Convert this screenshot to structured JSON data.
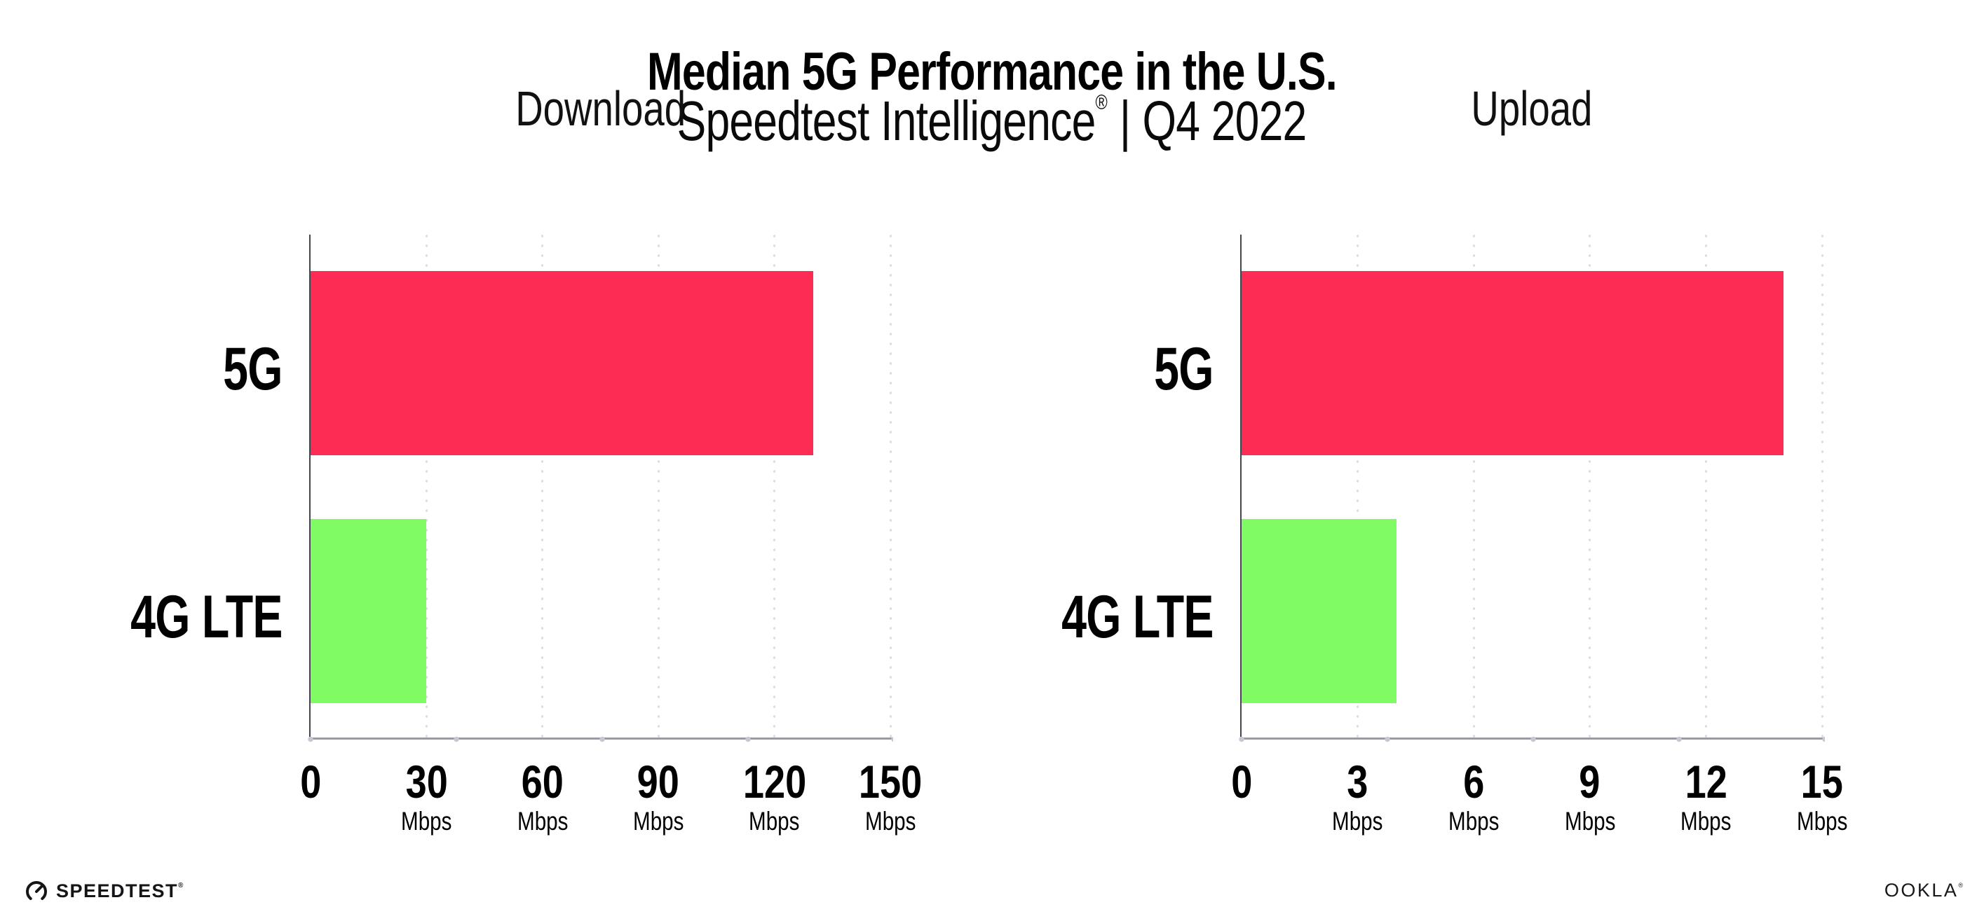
{
  "page": {
    "title": "Median 5G Performance in the U.S.",
    "subtitle_brand": "Speedtest Intelligence",
    "subtitle_reg": "®",
    "subtitle_sep": "|",
    "subtitle_period": "Q4 2022"
  },
  "footer": {
    "speedtest_label": "SPEEDTEST",
    "speedtest_reg": "®",
    "speedtest_icon": "speedtest-gauge-icon",
    "ookla_label": "OOKLA",
    "ookla_reg": "®"
  },
  "colors": {
    "bar_5g": "#FD2C55",
    "bar_4g_lte": "#80FB63",
    "y_axis": "#45454d",
    "x_axis": "#9a9aa2",
    "gridline_dots": "#dbdbe6",
    "text": "#000000"
  },
  "chart_data": [
    {
      "type": "bar",
      "orientation": "horizontal",
      "title": "Download",
      "categories": [
        "5G",
        "4G LTE"
      ],
      "values": [
        130,
        30
      ],
      "unit": "Mbps",
      "xlabel": "",
      "ylabel": "",
      "xlim": [
        0,
        150
      ],
      "xticks": [
        0,
        30,
        60,
        90,
        120,
        150
      ],
      "bar_colors": [
        "#FD2C55",
        "#80FB63"
      ],
      "grid": "vertical-dotted",
      "legend": "none"
    },
    {
      "type": "bar",
      "orientation": "horizontal",
      "title": "Upload",
      "categories": [
        "5G",
        "4G LTE"
      ],
      "values": [
        14,
        4
      ],
      "unit": "Mbps",
      "xlabel": "",
      "ylabel": "",
      "xlim": [
        0,
        15
      ],
      "xticks": [
        0,
        3,
        6,
        9,
        12,
        15
      ],
      "bar_colors": [
        "#FD2C55",
        "#80FB63"
      ],
      "grid": "vertical-dotted",
      "legend": "none"
    }
  ]
}
